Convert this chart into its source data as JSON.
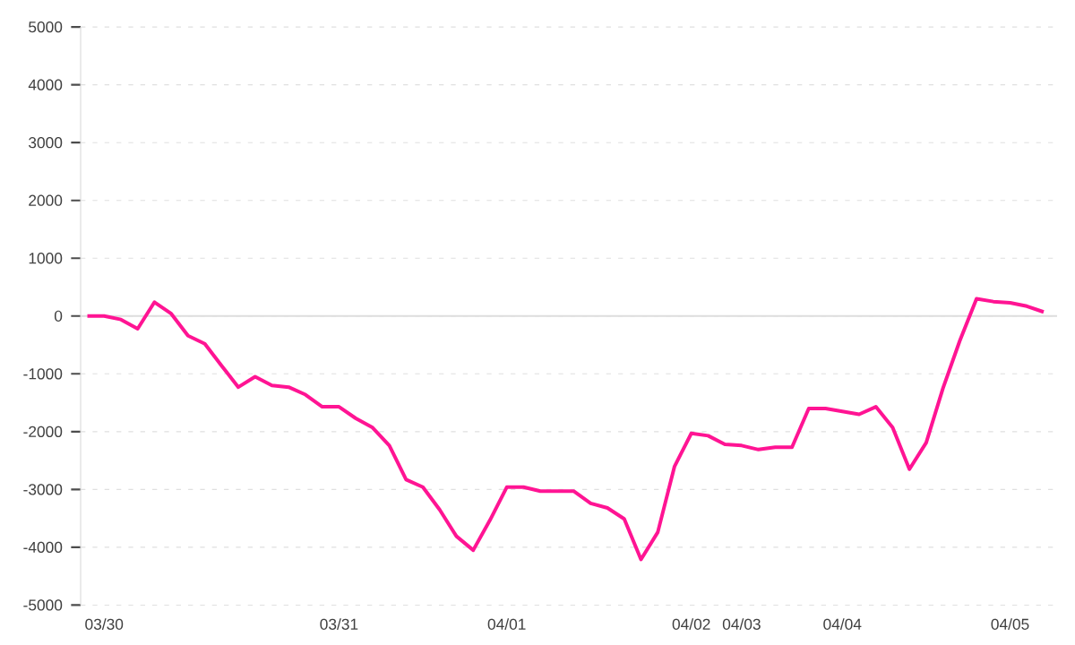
{
  "chart_data": {
    "type": "line",
    "categories": [
      null,
      "03/30",
      null,
      null,
      null,
      null,
      null,
      null,
      null,
      null,
      null,
      null,
      null,
      null,
      null,
      "03/31",
      null,
      null,
      null,
      null,
      null,
      null,
      null,
      null,
      null,
      "04/01",
      null,
      null,
      null,
      null,
      null,
      null,
      null,
      null,
      null,
      null,
      "04/02",
      null,
      null,
      "04/03",
      null,
      null,
      null,
      null,
      null,
      "04/04",
      null,
      null,
      null,
      null,
      null,
      null,
      null,
      null,
      null,
      "04/05",
      null,
      null
    ],
    "values": [
      0,
      0,
      -60,
      -220,
      240,
      40,
      -340,
      -480,
      -860,
      -1230,
      -1050,
      -1200,
      -1230,
      -1360,
      -1570,
      -1570,
      -1770,
      -1930,
      -2240,
      -2830,
      -2960,
      -3350,
      -3810,
      -4050,
      -3530,
      -2960,
      -2960,
      -3030,
      -3030,
      -3030,
      -3240,
      -3320,
      -3510,
      -4210,
      -3740,
      -2600,
      -2030,
      -2070,
      -2220,
      -2240,
      -2310,
      -2270,
      -2270,
      -1600,
      -1600,
      -1650,
      -1700,
      -1570,
      -1930,
      -2650,
      -2190,
      -1250,
      -430,
      300,
      250,
      230,
      170,
      70
    ],
    "color": "#ff1493",
    "ylim": [
      -5000,
      5000
    ],
    "yticks": [
      -5000,
      -4000,
      -3000,
      -2000,
      -1000,
      0,
      1000,
      2000,
      3000,
      4000,
      5000
    ],
    "grid": "y",
    "ref_lines": [
      {
        "axis": "y",
        "value": 0,
        "color": "#dddddd"
      }
    ],
    "line_style": "solid"
  }
}
